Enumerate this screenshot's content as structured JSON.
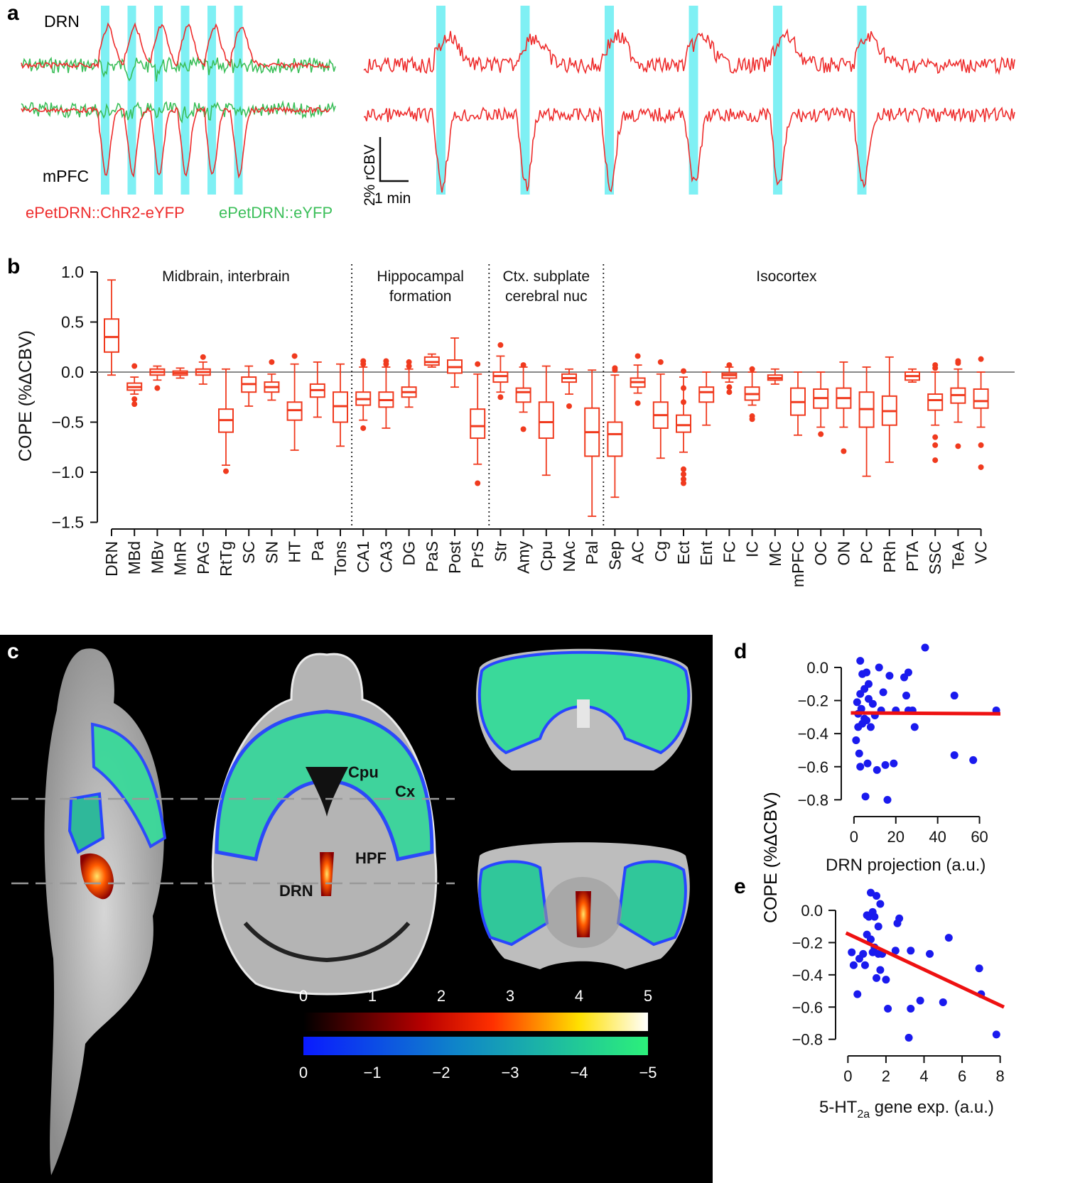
{
  "panels": {
    "a": {
      "letter": "a",
      "trace_labels": {
        "top": "DRN",
        "bottom": "mPFC"
      },
      "legend": {
        "chr2": "ePetDRN::ChR2-eYFP",
        "eyfp": "ePetDRN::eYFP"
      },
      "scale_bar": {
        "vertical": "2% rCBV",
        "horizontal": "1 min"
      },
      "colors": {
        "chr2": "#ee2c2c",
        "eyfp": "#3cbf5a",
        "stim": "#7ff0f4"
      },
      "left_stim_count": 6,
      "right_stim_count": 6
    },
    "b": {
      "letter": "b"
    },
    "c": {
      "letter": "c",
      "labels": {
        "cpu": "Cpu",
        "cx": "Cx",
        "hpf": "HPF",
        "drn": "DRN"
      },
      "pos_scale": {
        "ticks": [
          "0",
          "1",
          "2",
          "3",
          "4",
          "5"
        ]
      },
      "neg_scale": {
        "ticks": [
          "0",
          "−1",
          "−2",
          "−3",
          "−4",
          "−5"
        ]
      }
    },
    "d": {
      "letter": "d"
    },
    "e": {
      "letter": "e"
    }
  },
  "shared_ylabel_de": "COPE (%ΔCBV)",
  "chart_data": [
    {
      "id": "b",
      "type": "box",
      "ylabel": "COPE (%ΔCBV)",
      "ylim": [
        -1.5,
        1.0
      ],
      "yticks": [
        "1.0",
        "0.5",
        "0.0",
        "−0.5",
        "−1.0",
        "−1.5"
      ],
      "ytick_values": [
        1.0,
        0.5,
        0.0,
        -0.5,
        -1.0,
        -1.5
      ],
      "color": "#f03a1e",
      "groups": [
        {
          "title": [
            "Midbrain, interbrain"
          ],
          "from": 0,
          "to": 10
        },
        {
          "title": [
            "Hippocampal",
            "formation"
          ],
          "from": 11,
          "to": 16
        },
        {
          "title": [
            "Ctx. subplate",
            "cerebral nuc"
          ],
          "from": 17,
          "to": 21
        },
        {
          "title": [
            "Isocortex"
          ],
          "from": 22,
          "to": 37
        }
      ],
      "categories": [
        "DRN",
        "MBd",
        "MBv",
        "MnR",
        "PAG",
        "RtTg",
        "SC",
        "SN",
        "HT",
        "Pa",
        "Tons",
        "CA1",
        "CA3",
        "DG",
        "PaS",
        "Post",
        "PrS",
        "Str",
        "Amy",
        "Cpu",
        "NAc",
        "Pal",
        "Sep",
        "AC",
        "Cg",
        "Ect",
        "Ent",
        "FC",
        "IC",
        "MC",
        "mPFC",
        "OC",
        "ON",
        "PC",
        "PRh",
        "PTA",
        "SSC",
        "TeA",
        "VC"
      ],
      "boxes": [
        {
          "wl": -0.03,
          "q1": 0.2,
          "med": 0.35,
          "q3": 0.53,
          "wh": 0.92,
          "out": []
        },
        {
          "wl": -0.22,
          "q1": -0.18,
          "med": -0.15,
          "q3": -0.11,
          "wh": -0.05,
          "out": [
            -0.27,
            -0.32,
            0.06
          ]
        },
        {
          "wl": -0.08,
          "q1": -0.03,
          "med": 0.0,
          "q3": 0.03,
          "wh": 0.06,
          "out": [
            -0.16
          ]
        },
        {
          "wl": -0.06,
          "q1": -0.03,
          "med": -0.01,
          "q3": 0.01,
          "wh": 0.04,
          "out": []
        },
        {
          "wl": -0.12,
          "q1": -0.03,
          "med": 0.0,
          "q3": 0.03,
          "wh": 0.1,
          "out": [
            0.15
          ]
        },
        {
          "wl": -0.93,
          "q1": -0.6,
          "med": -0.48,
          "q3": -0.37,
          "wh": 0.03,
          "out": [
            -0.99
          ]
        },
        {
          "wl": -0.34,
          "q1": -0.2,
          "med": -0.12,
          "q3": -0.05,
          "wh": 0.06,
          "out": []
        },
        {
          "wl": -0.28,
          "q1": -0.2,
          "med": -0.15,
          "q3": -0.1,
          "wh": -0.02,
          "out": [
            0.1
          ]
        },
        {
          "wl": -0.78,
          "q1": -0.48,
          "med": -0.38,
          "q3": -0.3,
          "wh": 0.08,
          "out": [
            0.16
          ]
        },
        {
          "wl": -0.45,
          "q1": -0.25,
          "med": -0.18,
          "q3": -0.12,
          "wh": 0.1,
          "out": []
        },
        {
          "wl": -0.74,
          "q1": -0.5,
          "med": -0.34,
          "q3": -0.2,
          "wh": 0.08,
          "out": []
        },
        {
          "wl": -0.48,
          "q1": -0.33,
          "med": -0.27,
          "q3": -0.2,
          "wh": 0.05,
          "out": [
            -0.56,
            0.08,
            0.11
          ]
        },
        {
          "wl": -0.56,
          "q1": -0.35,
          "med": -0.28,
          "q3": -0.2,
          "wh": 0.05,
          "out": [
            0.08,
            0.11
          ]
        },
        {
          "wl": -0.35,
          "q1": -0.25,
          "med": -0.2,
          "q3": -0.15,
          "wh": 0.03,
          "out": [
            0.06,
            0.1
          ]
        },
        {
          "wl": 0.05,
          "q1": 0.07,
          "med": 0.1,
          "q3": 0.15,
          "wh": 0.18,
          "out": []
        },
        {
          "wl": -0.15,
          "q1": -0.01,
          "med": 0.05,
          "q3": 0.12,
          "wh": 0.34,
          "out": []
        },
        {
          "wl": -0.92,
          "q1": -0.66,
          "med": -0.54,
          "q3": -0.37,
          "wh": -0.02,
          "out": [
            -1.11,
            0.08
          ]
        },
        {
          "wl": -0.2,
          "q1": -0.1,
          "med": -0.04,
          "q3": 0.0,
          "wh": 0.16,
          "out": [
            -0.25,
            0.27
          ]
        },
        {
          "wl": -0.4,
          "q1": -0.3,
          "med": -0.2,
          "q3": -0.16,
          "wh": 0.05,
          "out": [
            -0.57,
            0.07
          ]
        },
        {
          "wl": -1.03,
          "q1": -0.66,
          "med": -0.5,
          "q3": -0.3,
          "wh": 0.06,
          "out": []
        },
        {
          "wl": -0.22,
          "q1": -0.1,
          "med": -0.06,
          "q3": -0.02,
          "wh": 0.03,
          "out": [
            -0.34
          ]
        },
        {
          "wl": -1.44,
          "q1": -0.84,
          "med": -0.6,
          "q3": -0.36,
          "wh": 0.02,
          "out": []
        },
        {
          "wl": -1.25,
          "q1": -0.84,
          "med": -0.62,
          "q3": -0.5,
          "wh": -0.03,
          "out": [
            0.02,
            0.04
          ]
        },
        {
          "wl": -0.21,
          "q1": -0.15,
          "med": -0.1,
          "q3": -0.06,
          "wh": 0.07,
          "out": [
            -0.31,
            0.16
          ]
        },
        {
          "wl": -0.86,
          "q1": -0.56,
          "med": -0.43,
          "q3": -0.3,
          "wh": -0.02,
          "out": [
            0.1
          ]
        },
        {
          "wl": -0.8,
          "q1": -0.6,
          "med": -0.53,
          "q3": -0.43,
          "wh": -0.05,
          "out": [
            -0.97,
            -1.02,
            -1.07,
            -1.11,
            -0.3,
            -0.16,
            0.01
          ]
        },
        {
          "wl": -0.53,
          "q1": -0.3,
          "med": -0.2,
          "q3": -0.15,
          "wh": 0.0,
          "out": []
        },
        {
          "wl": -0.1,
          "q1": -0.06,
          "med": -0.03,
          "q3": -0.01,
          "wh": 0.05,
          "out": [
            -0.15,
            -0.2,
            0.07
          ]
        },
        {
          "wl": -0.33,
          "q1": -0.28,
          "med": -0.22,
          "q3": -0.15,
          "wh": 0.0,
          "out": [
            -0.44,
            -0.47,
            0.03
          ]
        },
        {
          "wl": -0.12,
          "q1": -0.08,
          "med": -0.06,
          "q3": -0.03,
          "wh": 0.03,
          "out": []
        },
        {
          "wl": -0.63,
          "q1": -0.43,
          "med": -0.3,
          "q3": -0.16,
          "wh": 0.0,
          "out": []
        },
        {
          "wl": -0.55,
          "q1": -0.36,
          "med": -0.26,
          "q3": -0.17,
          "wh": 0.0,
          "out": [
            -0.62
          ]
        },
        {
          "wl": -0.55,
          "q1": -0.36,
          "med": -0.26,
          "q3": -0.16,
          "wh": 0.1,
          "out": [
            -0.79
          ]
        },
        {
          "wl": -1.04,
          "q1": -0.55,
          "med": -0.37,
          "q3": -0.2,
          "wh": 0.05,
          "out": []
        },
        {
          "wl": -0.9,
          "q1": -0.53,
          "med": -0.39,
          "q3": -0.24,
          "wh": 0.15,
          "out": []
        },
        {
          "wl": -0.1,
          "q1": -0.08,
          "med": -0.04,
          "q3": 0.0,
          "wh": 0.03,
          "out": []
        },
        {
          "wl": -0.53,
          "q1": -0.38,
          "med": -0.28,
          "q3": -0.22,
          "wh": 0.0,
          "out": [
            -0.65,
            -0.73,
            -0.88,
            0.04,
            0.07
          ]
        },
        {
          "wl": -0.5,
          "q1": -0.31,
          "med": -0.23,
          "q3": -0.16,
          "wh": 0.03,
          "out": [
            -0.74,
            0.09,
            0.11
          ]
        },
        {
          "wl": -0.55,
          "q1": -0.36,
          "med": -0.29,
          "q3": -0.17,
          "wh": 0.0,
          "out": [
            -0.73,
            -0.95,
            0.13
          ]
        }
      ]
    },
    {
      "id": "d",
      "type": "scatter",
      "xlabel": "DRN projection (a.u.)",
      "ylabel": "COPE (%ΔCBV)",
      "xlim": [
        -2,
        70
      ],
      "ylim": [
        -0.85,
        0.15
      ],
      "xticks": [
        "0",
        "20",
        "40",
        "60"
      ],
      "xtick_values": [
        0,
        20,
        40,
        60
      ],
      "yticks": [
        "0.0",
        "−0.2",
        "−0.4",
        "−0.6",
        "−0.8"
      ],
      "ytick_values": [
        0.0,
        -0.2,
        -0.4,
        -0.6,
        -0.8
      ],
      "point_color": "#1a1aee",
      "line_color": "#ee1111",
      "fit": {
        "x": [
          -1.5,
          70
        ],
        "y": [
          -0.275,
          -0.28
        ]
      },
      "points": [
        [
          1,
          -0.44
        ],
        [
          1.5,
          -0.21
        ],
        [
          2,
          -0.36
        ],
        [
          2,
          -0.28
        ],
        [
          2.5,
          -0.52
        ],
        [
          3,
          0.04
        ],
        [
          3,
          -0.6
        ],
        [
          3,
          -0.16
        ],
        [
          3.5,
          -0.25
        ],
        [
          4,
          -0.04
        ],
        [
          4,
          -0.34
        ],
        [
          5,
          -0.31
        ],
        [
          5,
          -0.13
        ],
        [
          5.5,
          -0.78
        ],
        [
          6,
          -0.03
        ],
        [
          6,
          -0.32
        ],
        [
          6.5,
          -0.58
        ],
        [
          7,
          -0.1
        ],
        [
          7,
          -0.19
        ],
        [
          8,
          -0.36
        ],
        [
          9,
          -0.22
        ],
        [
          10,
          -0.29
        ],
        [
          11,
          -0.62
        ],
        [
          12,
          0.0
        ],
        [
          13,
          -0.26
        ],
        [
          14,
          -0.15
        ],
        [
          15,
          -0.59
        ],
        [
          16,
          -0.8
        ],
        [
          17,
          -0.05
        ],
        [
          19,
          -0.58
        ],
        [
          20,
          -0.26
        ],
        [
          24,
          -0.06
        ],
        [
          25,
          -0.17
        ],
        [
          26,
          -0.03
        ],
        [
          26,
          -0.26
        ],
        [
          28,
          -0.26
        ],
        [
          29,
          -0.36
        ],
        [
          34,
          0.12
        ],
        [
          48,
          -0.17
        ],
        [
          48,
          -0.53
        ],
        [
          57,
          -0.56
        ],
        [
          68,
          -0.26
        ]
      ]
    },
    {
      "id": "e",
      "type": "scatter",
      "xlabel": "5-HT₂ₐ gene exp. (a.u.)",
      "xlabel_parts": {
        "pre": "5-HT",
        "sub": "2a",
        "post": " gene exp. (a.u.)"
      },
      "ylabel": "COPE (%ΔCBV)",
      "xlim": [
        -0.2,
        8.2
      ],
      "ylim": [
        -0.85,
        0.15
      ],
      "xticks": [
        "0",
        "2",
        "4",
        "6",
        "8"
      ],
      "xtick_values": [
        0,
        2,
        4,
        6,
        8
      ],
      "yticks": [
        "0.0",
        "−0.2",
        "−0.4",
        "−0.6",
        "−0.8"
      ],
      "ytick_values": [
        0.0,
        -0.2,
        -0.4,
        -0.6,
        -0.8
      ],
      "point_color": "#1a1aee",
      "line_color": "#ee1111",
      "fit": {
        "x": [
          -0.1,
          8.2
        ],
        "y": [
          -0.14,
          -0.6
        ]
      },
      "points": [
        [
          0.2,
          -0.26
        ],
        [
          0.3,
          -0.34
        ],
        [
          0.5,
          -0.52
        ],
        [
          0.6,
          -0.3
        ],
        [
          0.8,
          -0.27
        ],
        [
          0.9,
          -0.34
        ],
        [
          1.0,
          -0.15
        ],
        [
          1.0,
          -0.03
        ],
        [
          1.1,
          -0.04
        ],
        [
          1.2,
          0.11
        ],
        [
          1.2,
          -0.18
        ],
        [
          1.3,
          -0.26
        ],
        [
          1.3,
          -0.01
        ],
        [
          1.4,
          -0.04
        ],
        [
          1.4,
          -0.23
        ],
        [
          1.5,
          0.09
        ],
        [
          1.5,
          -0.42
        ],
        [
          1.6,
          -0.27
        ],
        [
          1.6,
          -0.1
        ],
        [
          1.7,
          -0.37
        ],
        [
          1.7,
          0.04
        ],
        [
          1.8,
          -0.27
        ],
        [
          2.0,
          -0.43
        ],
        [
          2.1,
          -0.61
        ],
        [
          2.5,
          -0.25
        ],
        [
          2.6,
          -0.08
        ],
        [
          2.7,
          -0.05
        ],
        [
          3.2,
          -0.79
        ],
        [
          3.3,
          -0.25
        ],
        [
          3.3,
          -0.61
        ],
        [
          3.8,
          -0.56
        ],
        [
          4.3,
          -0.27
        ],
        [
          5.0,
          -0.57
        ],
        [
          5.3,
          -0.17
        ],
        [
          6.9,
          -0.36
        ],
        [
          7.0,
          -0.52
        ],
        [
          7.8,
          -0.77
        ]
      ]
    }
  ]
}
